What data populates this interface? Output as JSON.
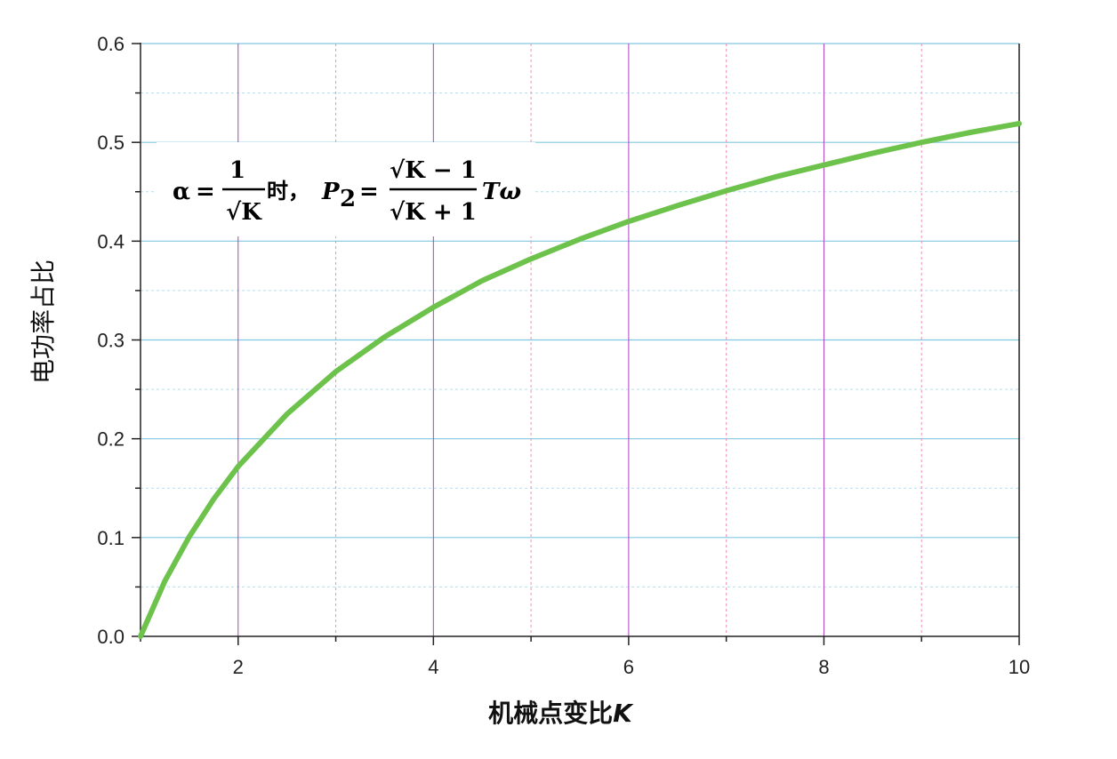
{
  "chart_data": {
    "type": "line",
    "title": "",
    "xlabel": "机械点变比",
    "xlabel_var": "K",
    "ylabel": "电功率占比",
    "xlim": [
      1,
      10
    ],
    "ylim": [
      0,
      0.6
    ],
    "x_ticks": [
      2,
      4,
      6,
      8,
      10
    ],
    "x_tick_labels": [
      "2",
      "4",
      "6",
      "8",
      "10"
    ],
    "y_ticks": [
      0.0,
      0.1,
      0.2,
      0.3,
      0.4,
      0.5,
      0.6
    ],
    "y_tick_labels": [
      "0.0",
      "0.1",
      "0.2",
      "0.3",
      "0.4",
      "0.5",
      "0.6"
    ],
    "grid": true,
    "legend": "none",
    "series": [
      {
        "color": "#6cc24a",
        "x": [
          1,
          1.25,
          1.5,
          1.75,
          2,
          2.5,
          3,
          3.5,
          4,
          4.5,
          5,
          5.5,
          6,
          6.5,
          7,
          7.5,
          8,
          8.5,
          9,
          9.5,
          10
        ],
        "values": [
          0,
          0.056,
          0.101,
          0.139,
          0.172,
          0.225,
          0.268,
          0.303,
          0.333,
          0.36,
          0.382,
          0.402,
          0.42,
          0.436,
          0.451,
          0.465,
          0.477,
          0.489,
          0.5,
          0.51,
          0.519
        ]
      }
    ],
    "annotation": {
      "alpha": "α",
      "eq": "=",
      "one": "1",
      "sqrtK": "√K",
      "shi": "时，",
      "P": "P",
      "sub2": "2",
      "eq2": "=",
      "num": "√K − 1",
      "den": "√K + 1",
      "tail": "Tω"
    }
  },
  "colors": {
    "major_vgrid": "#b040c0",
    "minor_vgrid": "#f090b0",
    "hgrid": "#80c8e0",
    "minor_hgrid": "#b8dcea",
    "curve": "#6cc24a",
    "axis": "#222222"
  }
}
